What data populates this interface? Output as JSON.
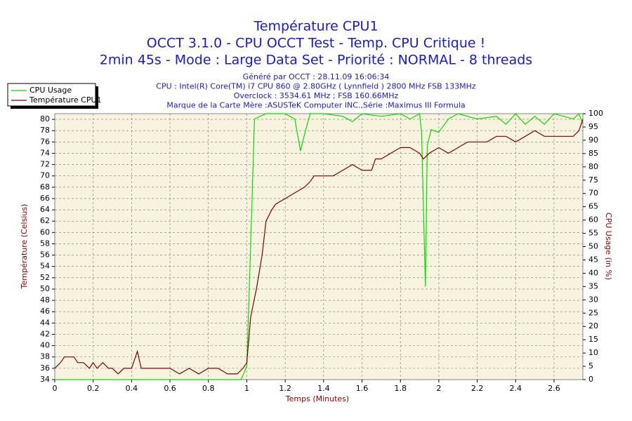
{
  "chart_data": {
    "type": "line",
    "title_lines": [
      "Température CPU1",
      "OCCT 3.1.0 - CPU OCCT Test - Temp. CPU Critique !",
      "2min 45s - Mode : Large Data Set - Priorité : NORMAL - 8 threads"
    ],
    "info_lines": [
      "Généré par OCCT : 28.11.09 16:06:34",
      "CPU : Intel(R) Core(TM) i7 CPU 860 @ 2.80GHz ( Lynnfield ) 2800 MHz FSB 133MHz",
      "Overclock : 3534.61 MHz ; FSB 160.66MHz",
      "Marque de la Carte Mère :ASUSTeK Computer INC.,Série :Maximus III Formula"
    ],
    "x_label": "Temps (Minutes)",
    "y_label": "Température (Celsius)",
    "y2_label": "CPU Usage (in %)",
    "xlim": [
      0,
      2.75
    ],
    "xticks": [
      0,
      0.2,
      0.4,
      0.6,
      0.8,
      1,
      1.2,
      1.4,
      1.6,
      1.8,
      2,
      2.2,
      2.4,
      2.6
    ],
    "ylim": [
      34,
      81
    ],
    "yticks": [
      34,
      36,
      38,
      40,
      42,
      44,
      46,
      48,
      50,
      52,
      54,
      56,
      58,
      60,
      62,
      64,
      66,
      68,
      70,
      72,
      74,
      76,
      78,
      80
    ],
    "y2lim": [
      0,
      100
    ],
    "y2ticks": [
      0,
      5,
      10,
      15,
      20,
      25,
      30,
      35,
      40,
      45,
      50,
      55,
      60,
      65,
      70,
      75,
      80,
      85,
      90,
      95,
      100
    ],
    "grid": true,
    "legend": "top-left",
    "series": [
      {
        "name": "CPU Usage",
        "color": "#00e000",
        "axis": "y2",
        "x": [
          0,
          0.97,
          1.0,
          1.02,
          1.04,
          1.1,
          1.2,
          1.25,
          1.28,
          1.3,
          1.33,
          1.4,
          1.5,
          1.55,
          1.6,
          1.7,
          1.8,
          1.85,
          1.9,
          1.91,
          1.93,
          1.94,
          1.96,
          2.0,
          2.05,
          2.1,
          2.2,
          2.3,
          2.35,
          2.4,
          2.45,
          2.5,
          2.55,
          2.6,
          2.65,
          2.7,
          2.73,
          2.75
        ],
        "values": [
          0,
          0,
          5,
          50,
          98,
          100,
          100,
          98,
          86,
          92,
          100,
          100,
          99,
          97,
          100,
          99,
          100,
          98,
          100,
          93,
          35,
          88,
          94,
          93,
          98,
          100,
          98,
          99,
          96,
          100,
          96,
          99,
          96,
          100,
          99,
          98,
          100,
          96
        ]
      },
      {
        "name": "Température CPU1",
        "color": "#800000",
        "x": [
          0,
          0.03,
          0.05,
          0.1,
          0.12,
          0.15,
          0.18,
          0.2,
          0.22,
          0.25,
          0.28,
          0.3,
          0.33,
          0.36,
          0.4,
          0.43,
          0.45,
          0.5,
          0.6,
          0.65,
          0.7,
          0.75,
          0.8,
          0.85,
          0.9,
          0.95,
          0.98,
          1.0,
          1.02,
          1.05,
          1.08,
          1.1,
          1.13,
          1.15,
          1.2,
          1.25,
          1.3,
          1.33,
          1.35,
          1.4,
          1.45,
          1.5,
          1.55,
          1.6,
          1.65,
          1.67,
          1.7,
          1.75,
          1.8,
          1.85,
          1.9,
          1.92,
          1.95,
          2.0,
          2.05,
          2.1,
          2.15,
          2.2,
          2.25,
          2.3,
          2.35,
          2.4,
          2.45,
          2.5,
          2.55,
          2.6,
          2.65,
          2.7,
          2.73,
          2.75
        ],
        "values": [
          36,
          37,
          38,
          38,
          37,
          37,
          36,
          37,
          36,
          37,
          36,
          36,
          35,
          36,
          36,
          39,
          36,
          36,
          36,
          35,
          36,
          35,
          36,
          36,
          35,
          35,
          36,
          37,
          45,
          50,
          56,
          62,
          64,
          65,
          66,
          67,
          68,
          69,
          70,
          70,
          70,
          71,
          72,
          71,
          71,
          73,
          73,
          74,
          75,
          75,
          74,
          73,
          74,
          75,
          74,
          75,
          76,
          76,
          76,
          77,
          77,
          76,
          77,
          78,
          77,
          77,
          77,
          77,
          78,
          80
        ]
      }
    ]
  }
}
